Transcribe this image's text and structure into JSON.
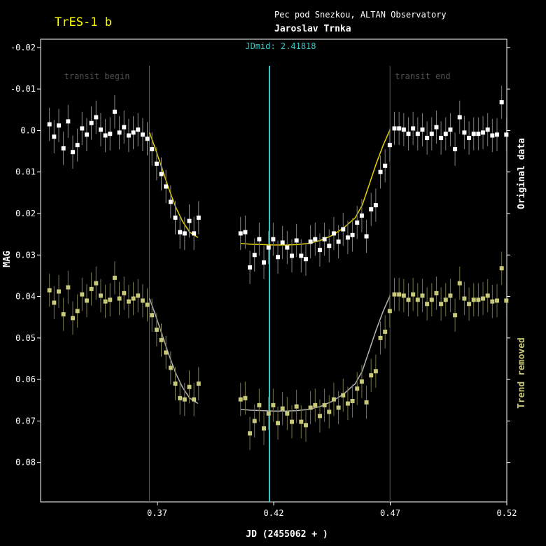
{
  "header": {
    "title": "TrES-1 b",
    "observatory": "Pec pod Snezkou, ALTAN Observatory",
    "observer": "Jaroslav Trnka"
  },
  "colors": {
    "background": "#000000",
    "axes": "#ffffff",
    "title": "#ffff00",
    "original_points": "#ffffff",
    "original_model": "#e6d200",
    "detrended_points": "#c8c87a",
    "detrended_model": "#b4b4b4",
    "jdmid_line": "#37c8c8",
    "transit_markers": "#505050"
  },
  "chart_data": {
    "type": "scatter",
    "xlabel": "JD (2455062 + )",
    "ylabel": "MAG",
    "xlim": [
      0.32,
      0.52
    ],
    "ylim": [
      -0.022,
      0.0895
    ],
    "y_inverted": true,
    "xticks": [
      0.37,
      0.42,
      0.47,
      0.52
    ],
    "yticks": [
      -0.02,
      -0.01,
      0.0,
      0.01,
      0.02,
      0.03,
      0.04,
      0.05,
      0.06,
      0.07,
      0.08
    ],
    "ytick_labels": [
      "-0.02",
      "-0.01",
      "0.0",
      "0.01",
      "0.02",
      "0.03",
      "0.04",
      "0.05",
      "0.06",
      "0.07",
      "0.08"
    ],
    "xtick_labels": [
      "0.37",
      "0.42",
      "0.47",
      "0.52"
    ],
    "jdmid": {
      "label": "JDmid: 2.41818",
      "x": 0.41818
    },
    "transit_begin": {
      "label": "transit begin",
      "x": 0.3667
    },
    "transit_end": {
      "label": "transit end",
      "x": 0.4699
    },
    "right_labels": {
      "top": "Original data",
      "bottom": "Trend removed"
    },
    "error_bar": 0.004,
    "detrended_offset": 0.04,
    "series": [
      {
        "name": "Original data",
        "x": [
          0.3238,
          0.3258,
          0.3278,
          0.3298,
          0.3318,
          0.3338,
          0.3358,
          0.3378,
          0.3398,
          0.3418,
          0.3438,
          0.3458,
          0.3478,
          0.3498,
          0.3518,
          0.3538,
          0.3558,
          0.3578,
          0.3598,
          0.3618,
          0.3638,
          0.3658,
          0.3678,
          0.3698,
          0.3718,
          0.3738,
          0.3758,
          0.3778,
          0.3798,
          0.3818,
          0.3838,
          0.3858,
          0.3878,
          0.4058,
          0.4078,
          0.4098,
          0.4118,
          0.4138,
          0.4158,
          0.4178,
          0.4198,
          0.4218,
          0.4238,
          0.4258,
          0.4278,
          0.4298,
          0.4318,
          0.4338,
          0.4358,
          0.4378,
          0.4398,
          0.4418,
          0.4438,
          0.4458,
          0.4478,
          0.4498,
          0.4518,
          0.4538,
          0.4558,
          0.4578,
          0.4598,
          0.4618,
          0.4638,
          0.4658,
          0.4678,
          0.4698,
          0.4718,
          0.4738,
          0.4758,
          0.4778,
          0.4798,
          0.4818,
          0.4838,
          0.4858,
          0.4878,
          0.4898,
          0.4918,
          0.4938,
          0.4958,
          0.4978,
          0.4998,
          0.5018,
          0.5038,
          0.5058,
          0.5078,
          0.5098,
          0.5118,
          0.5138,
          0.5158,
          0.5178,
          0.5198
        ],
        "y": [
          -0.0015,
          0.0015,
          -0.0012,
          0.0043,
          -0.0022,
          0.0052,
          0.0035,
          -0.0005,
          0.001,
          -0.0018,
          -0.0032,
          -0.0002,
          0.0012,
          0.0008,
          -0.0045,
          0.0005,
          -0.0008,
          0.0012,
          0.0005,
          -0.0002,
          0.001,
          0.002,
          0.0045,
          0.008,
          0.0105,
          0.0135,
          0.0172,
          0.021,
          0.0245,
          0.0248,
          0.0218,
          0.0248,
          0.021,
          0.0248,
          0.0245,
          0.033,
          0.03,
          0.0262,
          0.0318,
          0.0282,
          0.0262,
          0.0305,
          0.027,
          0.0282,
          0.0302,
          0.0265,
          0.0302,
          0.031,
          0.0268,
          0.0262,
          0.0288,
          0.0262,
          0.0278,
          0.0248,
          0.0268,
          0.0238,
          0.0258,
          0.0252,
          0.0222,
          0.0205,
          0.0255,
          0.019,
          0.018,
          0.01,
          0.0085,
          0.0035,
          -0.0005,
          -0.0005,
          -0.0002,
          0.0008,
          -0.0005,
          0.0008,
          -0.0002,
          0.0018,
          0.0008,
          -0.0008,
          0.0018,
          0.0008,
          -0.0002,
          0.0045,
          -0.0032,
          0.0005,
          0.0018,
          0.0008,
          0.0008,
          0.0005,
          -0.0002,
          0.0012,
          0.001,
          -0.0068,
          0.001
        ]
      }
    ],
    "model": {
      "x": [
        0.3238,
        0.3667,
        0.369,
        0.372,
        0.375,
        0.378,
        0.381,
        0.384,
        0.3875,
        0.4058,
        0.41,
        0.415,
        0.42,
        0.425,
        0.43,
        0.435,
        0.44,
        0.445,
        0.45,
        0.455,
        0.458,
        0.461,
        0.464,
        0.467,
        0.4699,
        0.5198
      ],
      "y": [
        0.0005,
        0.0005,
        0.004,
        0.009,
        0.014,
        0.0185,
        0.022,
        0.0245,
        0.0258,
        0.0272,
        0.0274,
        0.0275,
        0.0276,
        0.0276,
        0.0275,
        0.0272,
        0.0265,
        0.0253,
        0.0235,
        0.021,
        0.018,
        0.013,
        0.008,
        0.0035,
        -0.0002,
        0.0
      ]
    }
  }
}
